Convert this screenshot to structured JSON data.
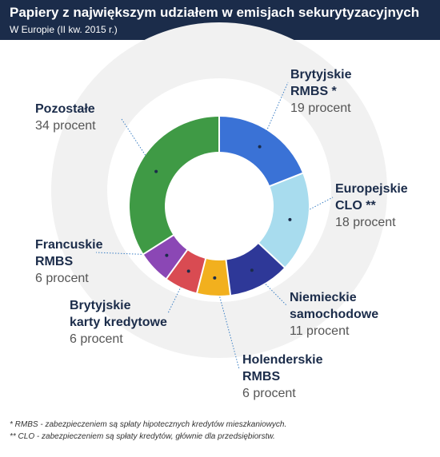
{
  "header": {
    "title": "Papiery z największym udziałem w emisjach sekurytyzacyjnych",
    "subtitle": "W Europie (II kw. 2015 r.)"
  },
  "chart_data": {
    "type": "pie",
    "donut": true,
    "slices": [
      {
        "label_lines": [
          "Brytyjskie",
          "RMBS *"
        ],
        "value_text": "19 procent",
        "value": 19,
        "color": "#3a72d6"
      },
      {
        "label_lines": [
          "Europejskie",
          "CLO **"
        ],
        "value_text": "18 procent",
        "value": 18,
        "color": "#a8dcee"
      },
      {
        "label_lines": [
          "Niemieckie",
          "samochodowe"
        ],
        "value_text": "11 procent",
        "value": 11,
        "color": "#2e3898"
      },
      {
        "label_lines": [
          "Holenderskie",
          "RMBS"
        ],
        "value_text": "6 procent",
        "value": 6,
        "color": "#f2b01e"
      },
      {
        "label_lines": [
          "Brytyjskie",
          "karty kredytowe"
        ],
        "value_text": "6 procent",
        "value": 6,
        "color": "#d94b52"
      },
      {
        "label_lines": [
          "Francuskie",
          "RMBS"
        ],
        "value_text": "6 procent",
        "value": 6,
        "color": "#8b47b5"
      },
      {
        "label_lines": [
          "Pozostałe"
        ],
        "value_text": "34 procent",
        "value": 34,
        "color": "#3f9a45"
      }
    ]
  },
  "footnotes": [
    "* RMBS - zabezpieczeniem są spłaty hipotecznych kredytów mieszkaniowych.",
    "** CLO - zabezpieczeniem są spłaty kredytów, głównie dla przedsiębiorstw."
  ]
}
